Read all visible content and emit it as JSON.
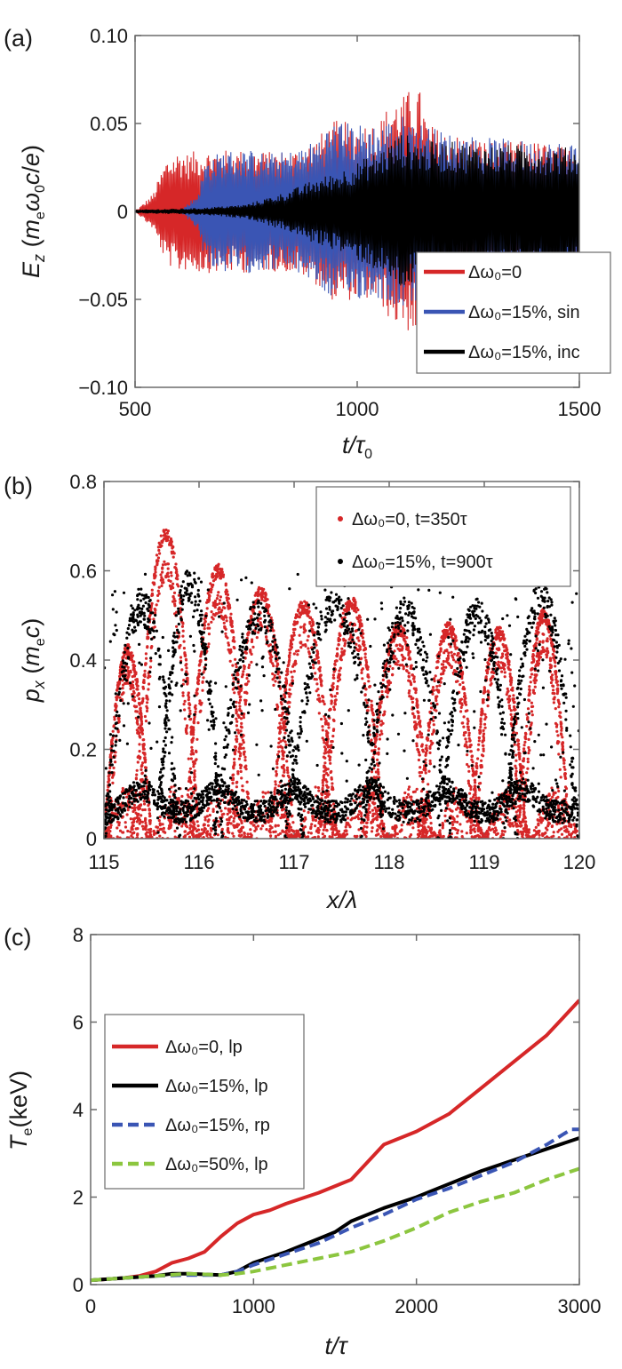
{
  "chart_data": [
    {
      "panel_label": "(a)",
      "type": "line",
      "xlabel": "t/τ₀",
      "ylabel": "E_z (m_e ω_0 c/e)",
      "xlim": [
        500,
        1500
      ],
      "ylim": [
        -0.1,
        0.1
      ],
      "xticks": [
        "500",
        "1000",
        "1500"
      ],
      "yticks": [
        "−0.10",
        "−0.05",
        "0",
        "0.05",
        "0.10"
      ],
      "legend_position": "bottom-right",
      "series": [
        {
          "name": "Δω₀=0",
          "color": "#d62728",
          "envelope": {
            "x": [
              500,
              540,
              570,
              600,
              620,
              640,
              660,
              700,
              760,
              800,
              860,
              900,
              950,
              1000,
              1050,
              1080,
              1100,
              1120,
              1140,
              1160,
              1200,
              1300,
              1400,
              1500
            ],
            "amp": [
              0.0,
              0.01,
              0.03,
              0.035,
              0.033,
              0.035,
              0.035,
              0.035,
              0.035,
              0.034,
              0.035,
              0.04,
              0.052,
              0.05,
              0.052,
              0.065,
              0.065,
              0.07,
              0.07,
              0.05,
              0.045,
              0.04,
              0.04,
              0.035
            ]
          }
        },
        {
          "name": "Δω₀=15%, sin",
          "color": "#3a55b4",
          "envelope": {
            "x": [
              500,
              600,
              640,
              660,
              700,
              760,
              800,
              860,
              900,
              950,
              1000,
              1050,
              1100,
              1150,
              1200,
              1300,
              1400,
              1500
            ],
            "amp": [
              0.0,
              0.0,
              0.01,
              0.03,
              0.035,
              0.035,
              0.033,
              0.035,
              0.04,
              0.052,
              0.05,
              0.05,
              0.055,
              0.05,
              0.045,
              0.042,
              0.04,
              0.04
            ]
          }
        },
        {
          "name": "Δω₀=15%, inc",
          "color": "#000000",
          "envelope": {
            "x": [
              500,
              650,
              750,
              800,
              850,
              900,
              950,
              1000,
              1050,
              1100,
              1150,
              1200,
              1300,
              1400,
              1500
            ],
            "amp": [
              0.001,
              0.002,
              0.004,
              0.008,
              0.012,
              0.018,
              0.022,
              0.028,
              0.035,
              0.045,
              0.04,
              0.04,
              0.038,
              0.038,
              0.036
            ]
          }
        }
      ]
    },
    {
      "panel_label": "(b)",
      "type": "scatter",
      "xlabel": "x/λ",
      "ylabel": "p_x (m_e c)",
      "xlim": [
        115,
        120
      ],
      "ylim": [
        0,
        0.8
      ],
      "xticks": [
        "115",
        "116",
        "117",
        "118",
        "119",
        "120"
      ],
      "yticks": [
        "0",
        "0.2",
        "0.4",
        "0.6",
        "0.8"
      ],
      "legend_position": "top-right",
      "series": [
        {
          "name": "Δω₀=0, t=350τ",
          "color": "#d62728",
          "arches": [
            [
              115.0,
              115.5,
              0.42
            ],
            [
              115.3,
              116.0,
              0.68
            ],
            [
              115.85,
              116.55,
              0.6
            ],
            [
              116.3,
              117.0,
              0.55
            ],
            [
              116.75,
              117.45,
              0.52
            ],
            [
              117.25,
              117.95,
              0.53
            ],
            [
              117.75,
              118.45,
              0.47
            ],
            [
              118.3,
              118.95,
              0.47
            ],
            [
              118.85,
              119.45,
              0.46
            ],
            [
              119.35,
              119.9,
              0.5
            ]
          ]
        },
        {
          "name": "Δω₀=15%, t=900τ",
          "color": "#000000",
          "arches": [
            [
              115.0,
              115.8,
              0.52
            ],
            [
              115.55,
              116.25,
              0.57
            ],
            [
              116.15,
              117.1,
              0.5
            ],
            [
              116.9,
              117.95,
              0.52
            ],
            [
              117.7,
              118.65,
              0.5
            ],
            [
              118.5,
              119.35,
              0.5
            ],
            [
              119.2,
              120.0,
              0.54
            ]
          ]
        }
      ]
    },
    {
      "panel_label": "(c)",
      "type": "line",
      "xlabel": "t/τ",
      "ylabel": "T_e (keV)",
      "xlim": [
        0,
        3000
      ],
      "ylim": [
        0,
        8
      ],
      "xticks": [
        "0",
        "1000",
        "2000",
        "3000"
      ],
      "yticks": [
        "0",
        "2",
        "4",
        "6",
        "8"
      ],
      "legend_position": "top-left",
      "series": [
        {
          "name": "Δω₀=0, lp",
          "color": "#d62728",
          "dash": "solid",
          "x": [
            0,
            200,
            300,
            400,
            500,
            600,
            700,
            800,
            900,
            1000,
            1100,
            1200,
            1400,
            1600,
            1800,
            2000,
            2200,
            2400,
            2600,
            2800,
            2900,
            3000
          ],
          "y": [
            0.1,
            0.15,
            0.2,
            0.3,
            0.5,
            0.6,
            0.75,
            1.1,
            1.4,
            1.6,
            1.7,
            1.85,
            2.1,
            2.4,
            3.2,
            3.5,
            3.9,
            4.5,
            5.1,
            5.7,
            6.1,
            6.5
          ]
        },
        {
          "name": "Δω₀=15%, lp",
          "color": "#000000",
          "dash": "solid",
          "x": [
            0,
            200,
            400,
            500,
            600,
            800,
            900,
            1000,
            1200,
            1400,
            1500,
            1600,
            1800,
            2000,
            2200,
            2400,
            2600,
            2800,
            3000
          ],
          "y": [
            0.1,
            0.15,
            0.2,
            0.25,
            0.25,
            0.22,
            0.3,
            0.5,
            0.75,
            1.05,
            1.2,
            1.45,
            1.75,
            2.0,
            2.3,
            2.6,
            2.85,
            3.1,
            3.35
          ]
        },
        {
          "name": "Δω₀=15%, rp",
          "color": "#3a55b4",
          "dash": "dashed",
          "x": [
            0,
            200,
            400,
            600,
            800,
            900,
            1000,
            1200,
            1400,
            1600,
            1800,
            2000,
            2200,
            2400,
            2600,
            2800,
            2950,
            3000
          ],
          "y": [
            0.1,
            0.15,
            0.2,
            0.22,
            0.22,
            0.3,
            0.45,
            0.7,
            0.95,
            1.3,
            1.6,
            1.95,
            2.2,
            2.5,
            2.8,
            3.2,
            3.55,
            3.55
          ]
        },
        {
          "name": "Δω₀=50%, lp",
          "color": "#8cc63f",
          "dash": "dashed",
          "x": [
            0,
            200,
            400,
            600,
            800,
            900,
            1000,
            1200,
            1400,
            1600,
            1800,
            2000,
            2200,
            2400,
            2600,
            2800,
            3000
          ],
          "y": [
            0.1,
            0.15,
            0.2,
            0.25,
            0.22,
            0.25,
            0.3,
            0.45,
            0.6,
            0.75,
            1.0,
            1.3,
            1.65,
            1.9,
            2.1,
            2.4,
            2.65
          ]
        }
      ]
    }
  ]
}
